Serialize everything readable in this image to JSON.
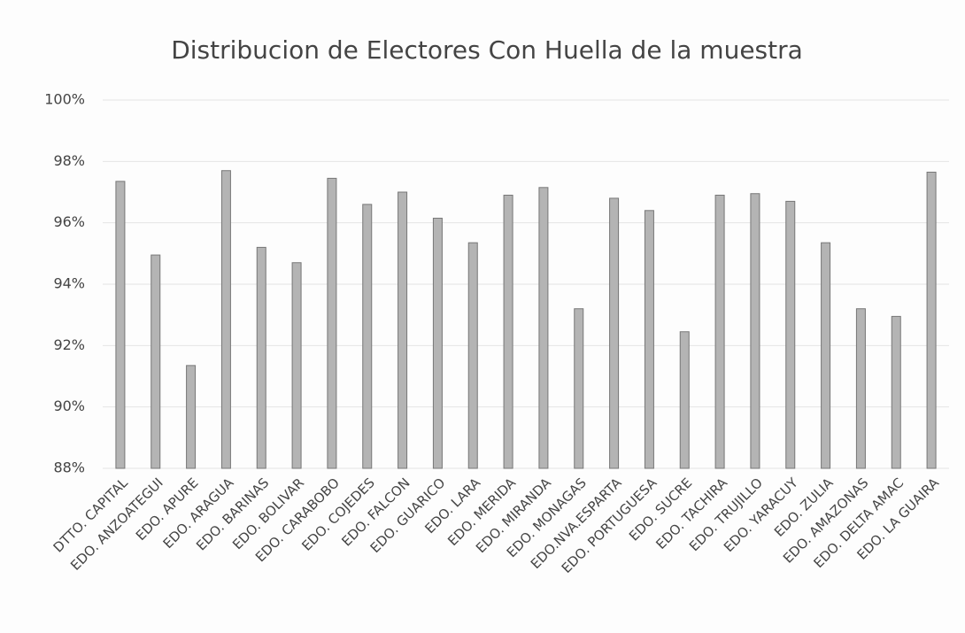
{
  "chart_data": {
    "type": "bar",
    "title": "Distribucion de Electores Con Huella de la muestra",
    "categories": [
      "DTTO. CAPITAL",
      "EDO. ANZOATEGUI",
      "EDO. APURE",
      "EDO. ARAGUA",
      "EDO. BARINAS",
      "EDO. BOLIVAR",
      "EDO. CARABOBO",
      "EDO. COJEDES",
      "EDO. FALCON",
      "EDO. GUARICO",
      "EDO. LARA",
      "EDO. MERIDA",
      "EDO. MIRANDA",
      "EDO. MONAGAS",
      "EDO.NVA.ESPARTA",
      "EDO. PORTUGUESA",
      "EDO. SUCRE",
      "EDO. TACHIRA",
      "EDO. TRUJILLO",
      "EDO. YARACUY",
      "EDO. ZULIA",
      "EDO. AMAZONAS",
      "EDO. DELTA AMAC",
      "EDO. LA GUAIRA"
    ],
    "values": [
      97.35,
      94.95,
      91.35,
      97.7,
      95.2,
      94.7,
      97.45,
      96.6,
      97.0,
      96.15,
      95.35,
      96.9,
      97.15,
      93.2,
      96.8,
      96.4,
      92.45,
      96.9,
      96.95,
      96.7,
      95.35,
      93.2,
      92.95,
      97.65
    ],
    "color": "#b4b4b4",
    "ylim": [
      88,
      100
    ],
    "yticks": [
      {
        "value": 88,
        "label": "88%"
      },
      {
        "value": 90,
        "label": "90%"
      },
      {
        "value": 92,
        "label": "92%"
      },
      {
        "value": 94,
        "label": "94%"
      },
      {
        "value": 96,
        "label": "96%"
      },
      {
        "value": 98,
        "label": "98%"
      },
      {
        "value": 100,
        "label": "100%"
      }
    ],
    "grid": true
  }
}
